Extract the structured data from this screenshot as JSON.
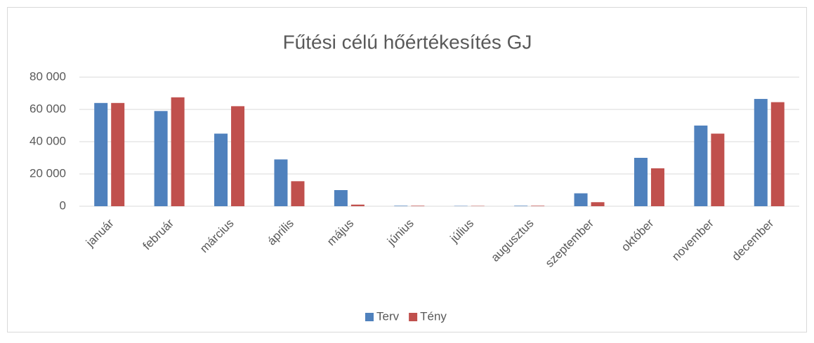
{
  "chart_data": {
    "type": "bar",
    "title": "Fűtési célú hőértékesítés GJ",
    "categories": [
      "január",
      "február",
      "március",
      "április",
      "május",
      "június",
      "július",
      "augusztus",
      "szeptember",
      "október",
      "november",
      "december"
    ],
    "series": [
      {
        "name": "Terv",
        "color": "#4f81bd",
        "values": [
          64000,
          59000,
          45000,
          29000,
          10000,
          300,
          200,
          300,
          8000,
          30000,
          50000,
          66500
        ]
      },
      {
        "name": "Tény",
        "color": "#c0504d",
        "values": [
          64000,
          67500,
          62000,
          15500,
          1000,
          300,
          200,
          300,
          2500,
          23500,
          45000,
          64500
        ]
      }
    ],
    "ylim": [
      0,
      80000
    ],
    "yticks": [
      0,
      {
        "value": 20000,
        "label": "20 000"
      },
      {
        "value": 40000,
        "label": "40 000"
      },
      {
        "value": 60000,
        "label": "60 000"
      },
      {
        "value": 80000,
        "label": "80 000"
      }
    ],
    "grid": true,
    "legend": "bottom"
  }
}
